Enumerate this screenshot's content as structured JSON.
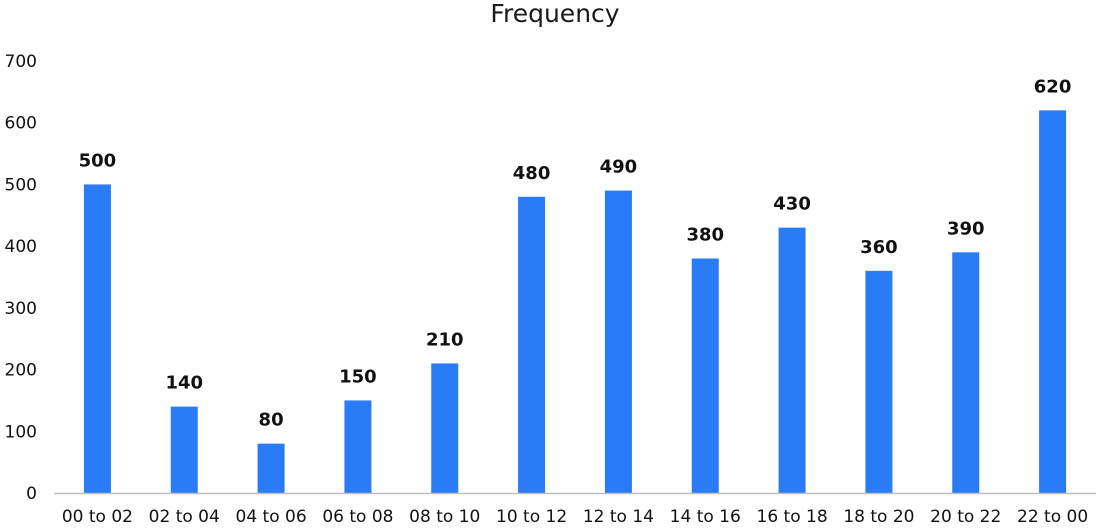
{
  "chart_data": {
    "type": "bar",
    "title": "Frequency",
    "xlabel": "",
    "ylabel": "",
    "categories": [
      "00 to 02",
      "02 to 04",
      "04 to 06",
      "06 to 08",
      "08 to 10",
      "10 to 12",
      "12 to 14",
      "14 to 16",
      "16 to 18",
      "18 to 20",
      "20 to 22",
      "22 to 00"
    ],
    "values": [
      500,
      140,
      80,
      150,
      210,
      480,
      490,
      380,
      430,
      360,
      390,
      620
    ],
    "ylim": [
      0,
      700
    ],
    "yticks": [
      0,
      100,
      200,
      300,
      400,
      500,
      600,
      700
    ],
    "grid": false,
    "legend": "none",
    "data_labels": true,
    "bar_color": "#2a7cf6",
    "axis_color": "#bfbfbf"
  }
}
